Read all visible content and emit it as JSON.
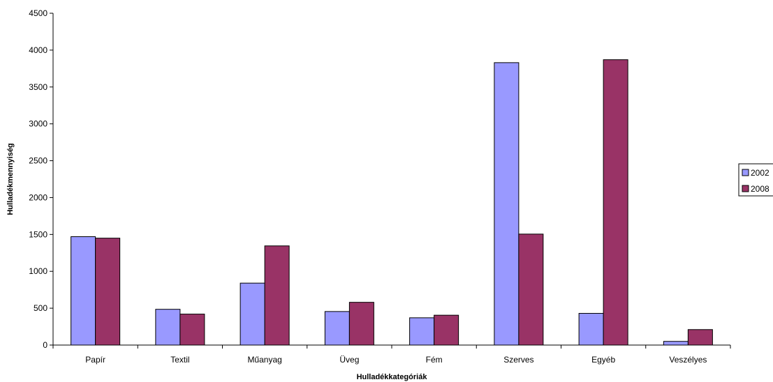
{
  "chart_data": {
    "type": "bar",
    "title": "",
    "xlabel": "Hulladékkategóriák",
    "ylabel": "Hulladékmennyiség",
    "ylim": [
      0,
      4500
    ],
    "yticks": [
      0,
      500,
      1000,
      1500,
      2000,
      2500,
      3000,
      3500,
      4000,
      4500
    ],
    "grid": false,
    "legend_position": "right",
    "categories": [
      "Papír",
      "Textil",
      "Műanyag",
      "Üveg",
      "Fém",
      "Szerves",
      "Egyéb",
      "Veszélyes"
    ],
    "series": [
      {
        "name": "2002",
        "color": "#9999ff",
        "values": [
          1470,
          485,
          840,
          455,
          370,
          3830,
          430,
          50
        ]
      },
      {
        "name": "2008",
        "color": "#993366",
        "values": [
          1450,
          420,
          1345,
          580,
          405,
          1505,
          3870,
          210
        ]
      }
    ]
  }
}
